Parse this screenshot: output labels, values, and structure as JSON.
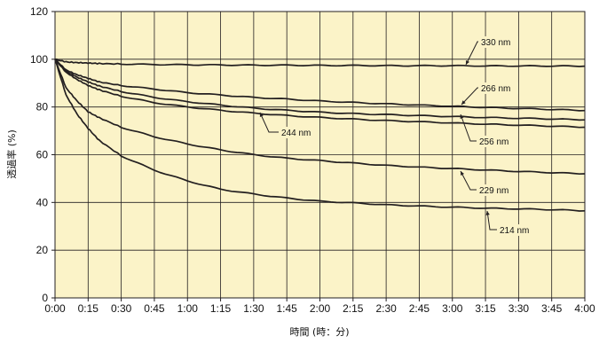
{
  "chart_data": {
    "type": "line",
    "title": "",
    "xlabel": "時間 (時：分)",
    "ylabel": "透過率 (%)",
    "xlim": [
      0,
      240
    ],
    "ylim": [
      0,
      120
    ],
    "x_tick_labels": [
      "0:00",
      "0:15",
      "0:30",
      "0:45",
      "1:00",
      "1:15",
      "1:30",
      "1:45",
      "2:00",
      "2:15",
      "2:30",
      "2:45",
      "3:00",
      "3:15",
      "3:30",
      "3:45",
      "4:00"
    ],
    "y_tick_labels": [
      "0",
      "20",
      "40",
      "60",
      "80",
      "100",
      "120"
    ],
    "grid": true,
    "background_color": "#fbf3c8",
    "line_color": "#231f20",
    "x_unit_note": "minutes",
    "x": [
      0,
      5,
      10,
      15,
      20,
      30,
      45,
      60,
      75,
      90,
      105,
      120,
      135,
      150,
      165,
      180,
      195,
      210,
      225,
      240
    ],
    "series": [
      {
        "name": "330 nm",
        "values": [
          100,
          98.9,
          98.6,
          98.4,
          98.2,
          98.0,
          97.8,
          97.7,
          97.6,
          97.5,
          97.5,
          97.4,
          97.4,
          97.3,
          97.3,
          97.3,
          97.2,
          97.2,
          97.2,
          97.1
        ]
      },
      {
        "name": "266 nm",
        "values": [
          100,
          95.5,
          93.5,
          92.0,
          90.5,
          89.0,
          87.5,
          86.0,
          85.0,
          84.0,
          83.3,
          82.5,
          81.9,
          81.3,
          80.8,
          80.3,
          79.8,
          79.4,
          79.0,
          78.5
        ]
      },
      {
        "name": "244 nm",
        "values": [
          100,
          95.0,
          92.5,
          90.5,
          88.8,
          86.5,
          84.0,
          82.2,
          80.8,
          79.5,
          78.6,
          77.8,
          77.2,
          76.8,
          76.4,
          76.0,
          75.6,
          75.3,
          75.0,
          74.6
        ]
      },
      {
        "name": "256 nm",
        "values": [
          100,
          94.5,
          91.5,
          89.0,
          87.2,
          84.5,
          81.8,
          80.0,
          78.6,
          77.4,
          76.4,
          75.6,
          74.9,
          74.3,
          73.8,
          73.3,
          72.8,
          72.4,
          72.0,
          71.5
        ]
      },
      {
        "name": "229 nm",
        "values": [
          100,
          88.0,
          82.5,
          78.0,
          75.5,
          71.5,
          67.5,
          64.5,
          62.0,
          60.0,
          58.5,
          57.5,
          56.5,
          55.5,
          54.8,
          54.2,
          53.6,
          53.0,
          52.5,
          52.0
        ]
      },
      {
        "name": "214 nm",
        "values": [
          100,
          85.0,
          77.0,
          71.0,
          66.0,
          59.5,
          53.5,
          49.0,
          45.5,
          43.5,
          41.8,
          40.5,
          39.8,
          39.0,
          38.5,
          38.0,
          37.6,
          37.3,
          37.0,
          36.5
        ]
      }
    ],
    "annotations": [
      {
        "series": "330 nm",
        "text": "330 nm"
      },
      {
        "series": "266 nm",
        "text": "266 nm"
      },
      {
        "series": "244 nm",
        "text": "244 nm"
      },
      {
        "series": "256 nm",
        "text": "256 nm"
      },
      {
        "series": "229 nm",
        "text": "229 nm"
      },
      {
        "series": "214 nm",
        "text": "214 nm"
      }
    ]
  }
}
